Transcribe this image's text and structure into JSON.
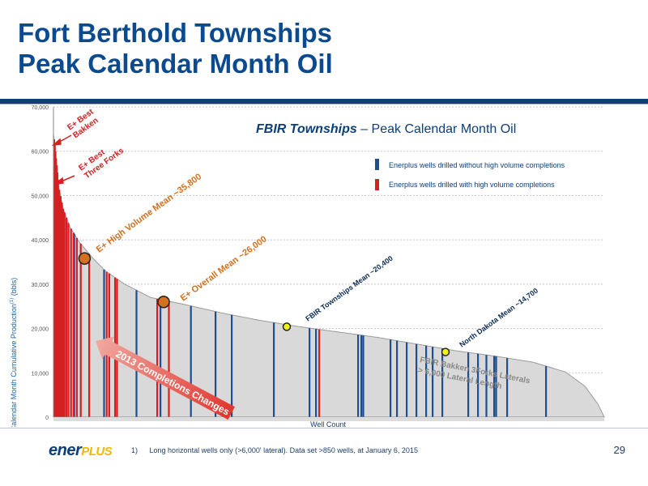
{
  "slide": {
    "title_line1": "Fort Berthold Townships",
    "title_line2": "Peak Calendar Month Oil",
    "page_number": "29",
    "footnote_number": "1)",
    "footnote_text": "Long horizontal wells only (>6,000' lateral).  Data set >850 wells, at January 6, 2015",
    "logo_text_1": "ener",
    "logo_text_2": "PLUS"
  },
  "chart_data": {
    "type": "bar",
    "title_bold": "FBIR Townships",
    "title_rest": " – Peak Calendar Month Oil",
    "xlabel": "Well Count",
    "ylabel": "Peak Calendar Month Cumulative Production",
    "ylabel_superscript": "(1)",
    "ylabel_unit": " (bbls)",
    "ylim": [
      0,
      70000
    ],
    "yticks": [
      0,
      10000,
      20000,
      30000,
      40000,
      50000,
      60000,
      70000
    ],
    "ytick_labels": [
      "0",
      "10,000",
      "20,000",
      "30,000",
      "40,000",
      "50,000",
      "60,000",
      "70,000"
    ],
    "grid": true,
    "well_count_approx": 850,
    "curve_profile": [
      [
        0,
        64000
      ],
      [
        3,
        60000
      ],
      [
        8,
        52000
      ],
      [
        15,
        47000
      ],
      [
        25,
        43000
      ],
      [
        40,
        39500
      ],
      [
        60,
        36000
      ],
      [
        80,
        33000
      ],
      [
        110,
        30000
      ],
      [
        150,
        27000
      ],
      [
        200,
        25500
      ],
      [
        260,
        23500
      ],
      [
        320,
        21800
      ],
      [
        380,
        20400
      ],
      [
        440,
        19200
      ],
      [
        500,
        18000
      ],
      [
        560,
        16500
      ],
      [
        620,
        15000
      ],
      [
        680,
        13800
      ],
      [
        740,
        12400
      ],
      [
        790,
        10200
      ],
      [
        820,
        7000
      ],
      [
        840,
        3000
      ],
      [
        850,
        0
      ]
    ],
    "series": [
      {
        "name": "Enerplus wells drilled without high volume completions",
        "color": "#1f4e8c",
        "wells": [
          32,
          78,
          128,
          165,
          212,
          250,
          275,
          340,
          395,
          405,
          470,
          475,
          478,
          520,
          530,
          545,
          560,
          575,
          585,
          600,
          640,
          655,
          668,
          680,
          683,
          700,
          760
        ]
      },
      {
        "name": "Enerplus wells drilled with high volume completions",
        "color": "#d42020",
        "wells": [
          1,
          2,
          3,
          4,
          5,
          6,
          7,
          9,
          11,
          13,
          15,
          17,
          20,
          23,
          27,
          31,
          36,
          42,
          55,
          82,
          86,
          95,
          98,
          160,
          178,
          410
        ]
      }
    ],
    "annotations": [
      {
        "text": "E+ Best\nBakken",
        "color": "#d42020"
      },
      {
        "text": "E+ Best\nThree Forks",
        "color": "#d42020"
      },
      {
        "text": "E+ High Volume Mean ~35,800",
        "value": 35800,
        "color": "#d4701e"
      },
      {
        "text": "E+ Overall Mean ~26,000",
        "value": 26000,
        "color": "#d4701e"
      },
      {
        "text": "FBIR Townships Mean    ~20,400",
        "value": 20400,
        "color": "#0b2a55"
      },
      {
        "text": "North Dakota Mean    ~14,700",
        "value": 14700,
        "color": "#0b2a55"
      },
      {
        "text": "FBIR Bakken 3Forks Laterals\n> 6,000 Lateral Length",
        "color": "#808080"
      },
      {
        "text": "2013 Completions Changes",
        "color": "#e0362e"
      }
    ]
  }
}
